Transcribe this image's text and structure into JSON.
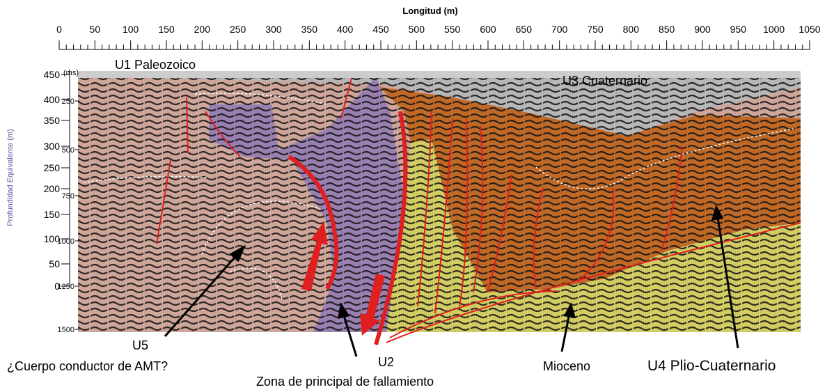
{
  "axis_top": {
    "title": "Longitud (m)",
    "ticks": [
      0,
      50,
      100,
      150,
      200,
      250,
      300,
      350,
      400,
      450,
      500,
      550,
      600,
      650,
      700,
      750,
      800,
      850,
      900,
      950,
      1000,
      1050
    ]
  },
  "axis_depth": {
    "title": "Profundidad Equivalente (m)",
    "ticks": [
      450,
      400,
      350,
      300,
      250,
      200,
      150,
      100,
      50,
      0
    ]
  },
  "axis_time": {
    "unit": "(ms)",
    "ticks": [
      250,
      500,
      750,
      1000,
      1250,
      1500
    ]
  },
  "units": {
    "u1": "U1  Paleozoico",
    "u3": "U3 Cuaternario",
    "u5": "U5",
    "u5_note": "¿Cuerpo conductor de AMT?",
    "u2": "U2",
    "u2_note": "Zona de principal de fallamiento",
    "mioceno": "Mioceno",
    "u4": "U4 Plio-Cuaternario"
  }
}
